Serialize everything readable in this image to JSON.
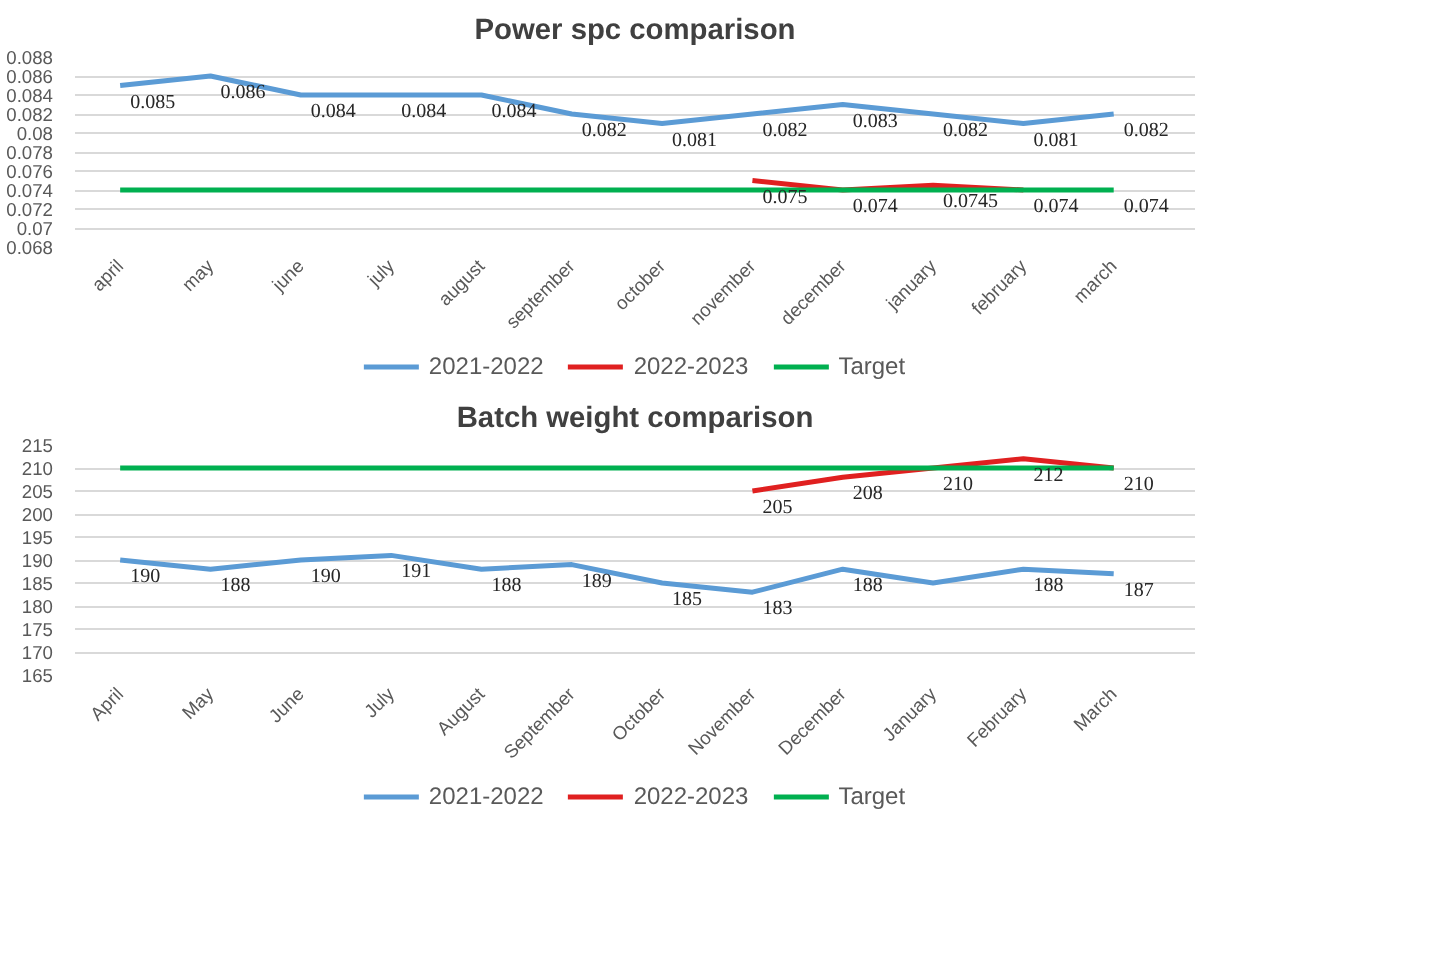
{
  "chart_data": [
    {
      "type": "line",
      "title": "Power spc comparison",
      "categories": [
        "april",
        "may",
        "june",
        "july",
        "august",
        "september",
        "october",
        "november",
        "december",
        "january",
        "february",
        "march"
      ],
      "ylim": [
        0.068,
        0.088
      ],
      "yticks": [
        0.068,
        0.07,
        0.072,
        0.074,
        0.076,
        0.078,
        0.08,
        0.082,
        0.084,
        0.086,
        0.088
      ],
      "grid": "y",
      "legend": "bottom",
      "series": [
        {
          "name": "2021-2022",
          "color": "#5b9bd5",
          "values": [
            0.085,
            0.086,
            0.084,
            0.084,
            0.084,
            0.082,
            0.081,
            0.082,
            0.083,
            0.082,
            0.081,
            0.082
          ],
          "value_labels": [
            "0.085",
            "0.086",
            "0.084",
            "0.084",
            "0.084",
            "0.082",
            "0.081",
            "0.082",
            "0.083",
            "0.082",
            "0.081",
            "0.082"
          ]
        },
        {
          "name": "2022-2023",
          "color": "#e02020",
          "values": [
            null,
            null,
            null,
            null,
            null,
            null,
            null,
            0.075,
            0.074,
            0.0745,
            0.074,
            null
          ],
          "value_labels": [
            null,
            null,
            null,
            null,
            null,
            null,
            null,
            "0.075",
            "0.074",
            "0.0745",
            "0.074",
            null
          ]
        },
        {
          "name": "Target",
          "color": "#00b050",
          "values": [
            0.074,
            0.074,
            0.074,
            0.074,
            0.074,
            0.074,
            0.074,
            0.074,
            0.074,
            0.074,
            0.074,
            0.074
          ],
          "value_labels": [
            null,
            null,
            null,
            null,
            null,
            null,
            null,
            null,
            null,
            null,
            null,
            "0.074"
          ]
        }
      ]
    },
    {
      "type": "line",
      "title": "Batch weight comparison",
      "categories": [
        "April",
        "May",
        "June",
        "July",
        "August",
        "September",
        "October",
        "November",
        "December",
        "January",
        "February",
        "March"
      ],
      "ylim": [
        165,
        215
      ],
      "yticks": [
        165,
        170,
        175,
        180,
        185,
        190,
        195,
        200,
        205,
        210,
        215
      ],
      "grid": "y",
      "legend": "bottom",
      "series": [
        {
          "name": "2021-2022",
          "color": "#5b9bd5",
          "values": [
            190,
            188,
            190,
            191,
            188,
            189,
            185,
            183,
            188,
            185,
            188,
            187
          ],
          "value_labels": [
            "190",
            "188",
            "190",
            "191",
            "188",
            "189",
            "185",
            "183",
            "188",
            null,
            "188",
            "187"
          ]
        },
        {
          "name": "2022-2023",
          "color": "#e02020",
          "values": [
            null,
            null,
            null,
            null,
            null,
            null,
            null,
            205,
            208,
            210,
            212,
            210
          ],
          "value_labels": [
            null,
            null,
            null,
            null,
            null,
            null,
            null,
            "205",
            "208",
            "210",
            "212",
            null
          ]
        },
        {
          "name": "Target",
          "color": "#00b050",
          "values": [
            210,
            210,
            210,
            210,
            210,
            210,
            210,
            210,
            210,
            210,
            210,
            210
          ],
          "value_labels": [
            null,
            null,
            null,
            null,
            null,
            null,
            null,
            null,
            null,
            null,
            null,
            "210"
          ]
        }
      ]
    }
  ]
}
